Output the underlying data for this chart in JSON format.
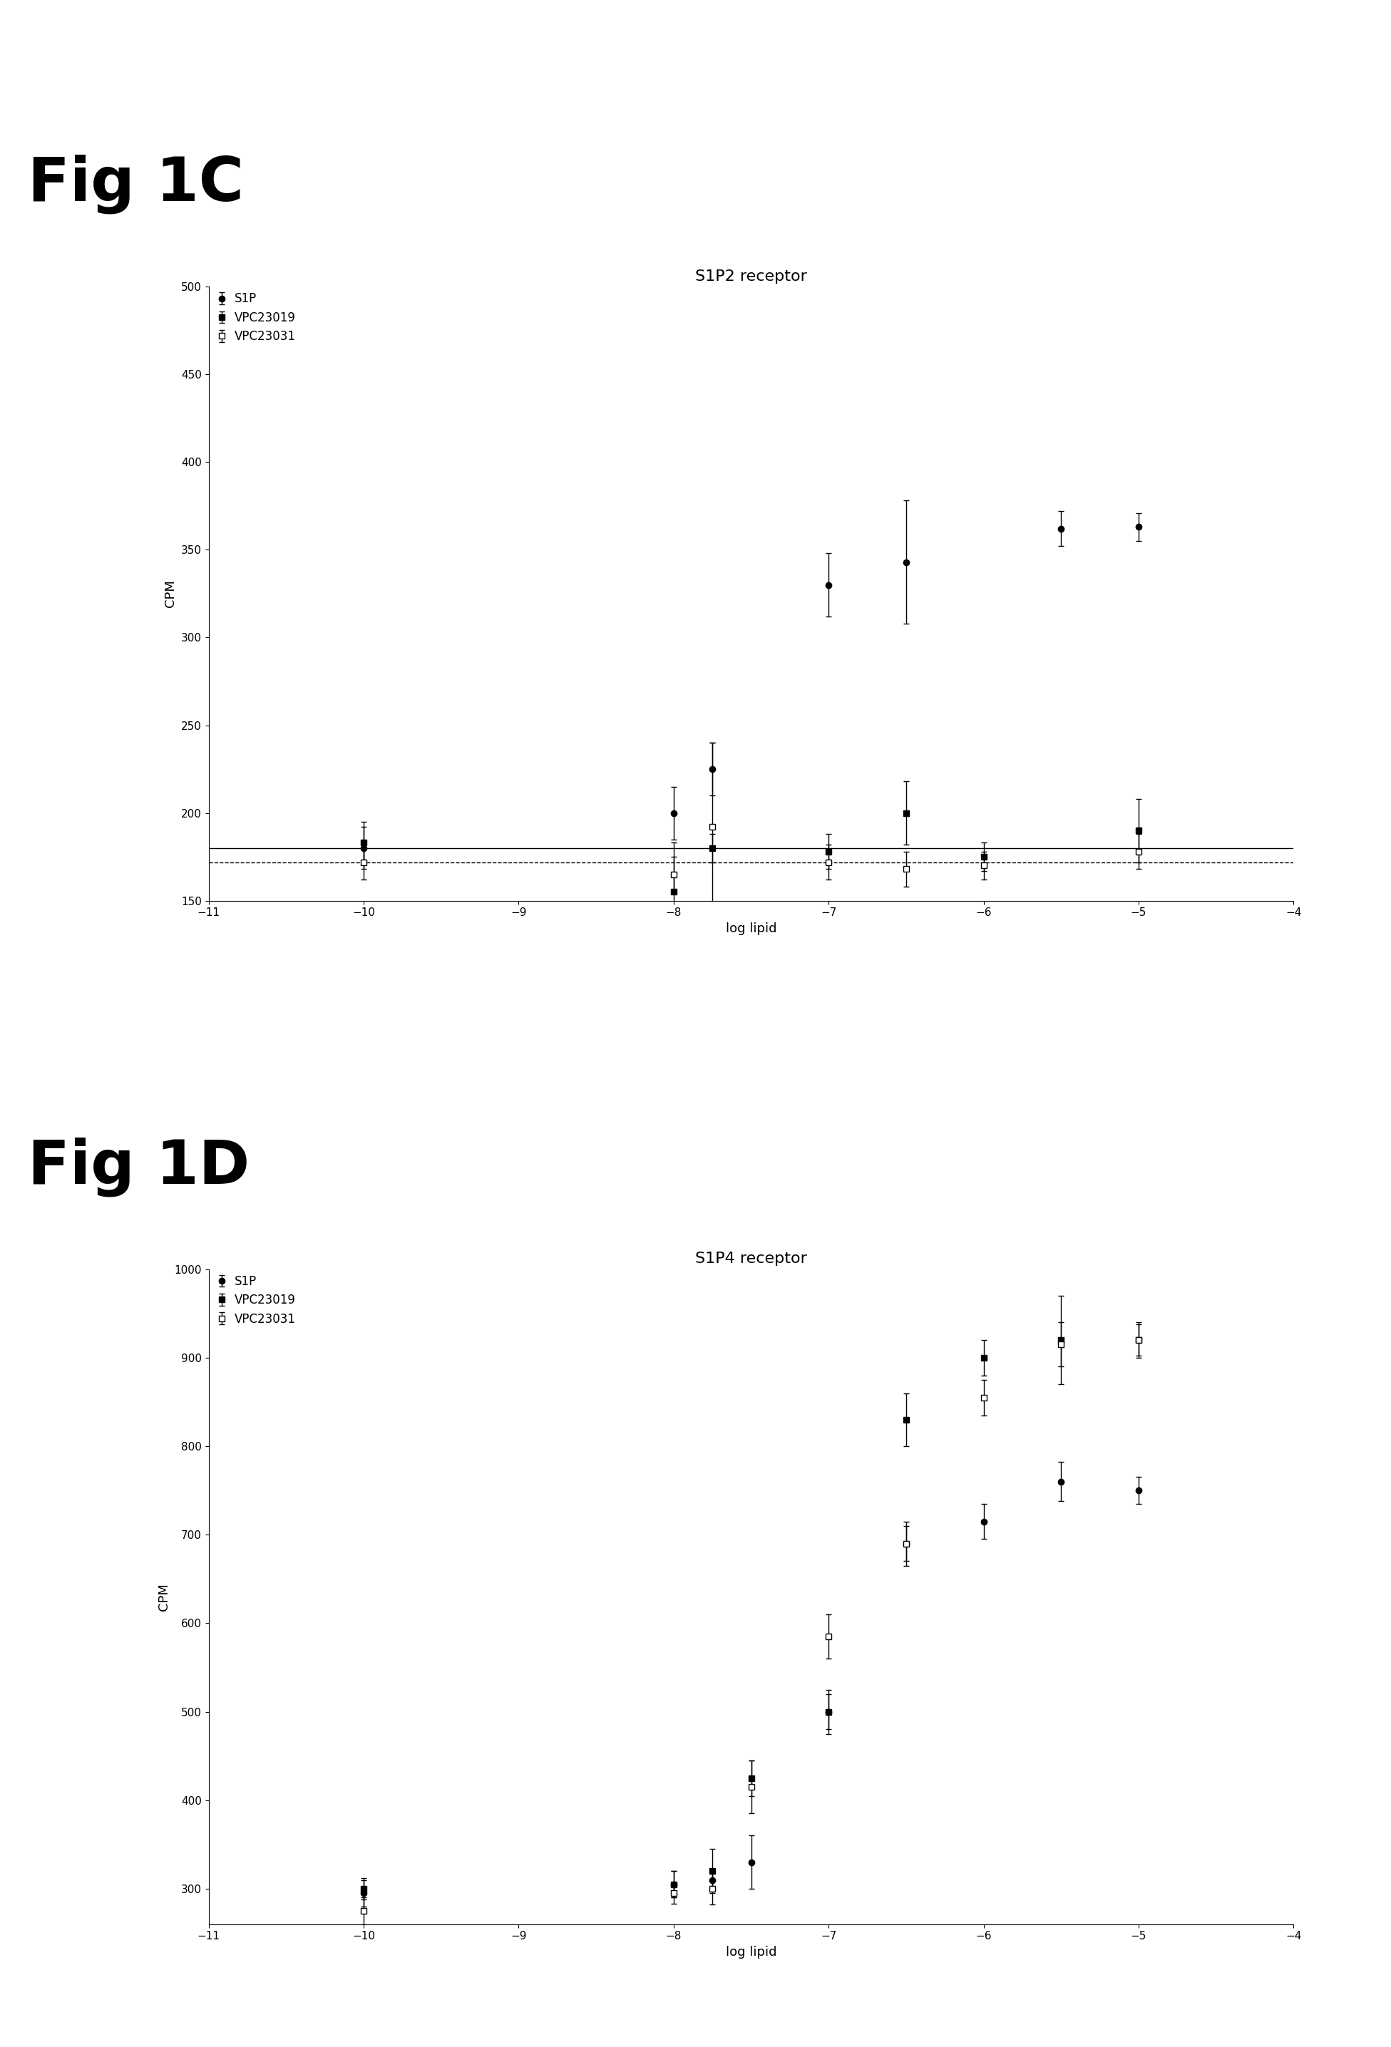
{
  "fig1c": {
    "title": "S1P2 receptor",
    "xlabel": "log lipid",
    "ylabel": "CPM",
    "ylim": [
      150,
      500
    ],
    "xlim": [
      -11,
      -4
    ],
    "yticks": [
      150,
      200,
      250,
      300,
      350,
      400,
      450,
      500
    ],
    "xticks": [
      -11,
      -10,
      -9,
      -8,
      -7,
      -6,
      -5,
      -4
    ],
    "S1P": {
      "x": [
        -10,
        -8,
        -7.75,
        -7,
        -6.5,
        -5.5,
        -5
      ],
      "y": [
        180,
        200,
        225,
        330,
        343,
        362,
        363
      ],
      "yerr": [
        12,
        15,
        15,
        18,
        35,
        10,
        8
      ]
    },
    "VPC23019": {
      "x": [
        -10,
        -8,
        -7.75,
        -7,
        -6.5,
        -6,
        -5
      ],
      "y": [
        183,
        155,
        180,
        178,
        200,
        175,
        190
      ],
      "yerr": [
        12,
        28,
        8,
        10,
        18,
        8,
        18
      ]
    },
    "VPC23031": {
      "x": [
        -10,
        -8,
        -7.75,
        -7,
        -6.5,
        -6,
        -5
      ],
      "y": [
        172,
        165,
        192,
        172,
        168,
        170,
        178
      ],
      "yerr": [
        10,
        10,
        48,
        10,
        10,
        8,
        10
      ]
    },
    "S1P_sigmoid_p0": [
      160,
      370,
      -8.2,
      1.2
    ],
    "VPC23019_flat_y": 180,
    "VPC23031_flat_y": 172
  },
  "fig1d": {
    "title": "S1P4 receptor",
    "xlabel": "log lipid",
    "ylabel": "CPM",
    "ylim": [
      260,
      1000
    ],
    "xlim": [
      -11,
      -4
    ],
    "yticks": [
      300,
      400,
      500,
      600,
      700,
      800,
      900,
      1000
    ],
    "xticks": [
      -11,
      -10,
      -9,
      -8,
      -7,
      -6,
      -5,
      -4
    ],
    "S1P": {
      "x": [
        -10,
        -8,
        -7.75,
        -7.5,
        -7,
        -6.5,
        -6,
        -5.5,
        -5
      ],
      "y": [
        295,
        305,
        310,
        330,
        500,
        690,
        715,
        760,
        750
      ],
      "yerr": [
        15,
        15,
        12,
        30,
        20,
        20,
        20,
        22,
        15
      ]
    },
    "VPC23019": {
      "x": [
        -10,
        -8,
        -7.75,
        -7.5,
        -7,
        -6.5,
        -6,
        -5.5,
        -5
      ],
      "y": [
        300,
        305,
        320,
        425,
        500,
        830,
        900,
        920,
        920
      ],
      "yerr": [
        12,
        15,
        25,
        20,
        25,
        30,
        20,
        50,
        18
      ]
    },
    "VPC23031": {
      "x": [
        -10,
        -8,
        -7.75,
        -7.5,
        -7,
        -6.5,
        -6,
        -5.5,
        -5
      ],
      "y": [
        275,
        295,
        300,
        415,
        585,
        690,
        855,
        915,
        920
      ],
      "yerr": [
        15,
        12,
        18,
        30,
        25,
        25,
        20,
        25,
        20
      ]
    },
    "S1P_sigmoid_p0": [
      290,
      780,
      -6.7,
      1.2
    ],
    "VPC23019_sigmoid_p0": [
      290,
      940,
      -7.0,
      1.5
    ],
    "VPC23031_sigmoid_p0": [
      275,
      940,
      -6.8,
      1.5
    ]
  },
  "bg_color": "#ffffff",
  "fig_label_fontsize": 62,
  "title_fontsize": 16,
  "axis_fontsize": 13,
  "tick_fontsize": 11,
  "legend_fontsize": 12
}
